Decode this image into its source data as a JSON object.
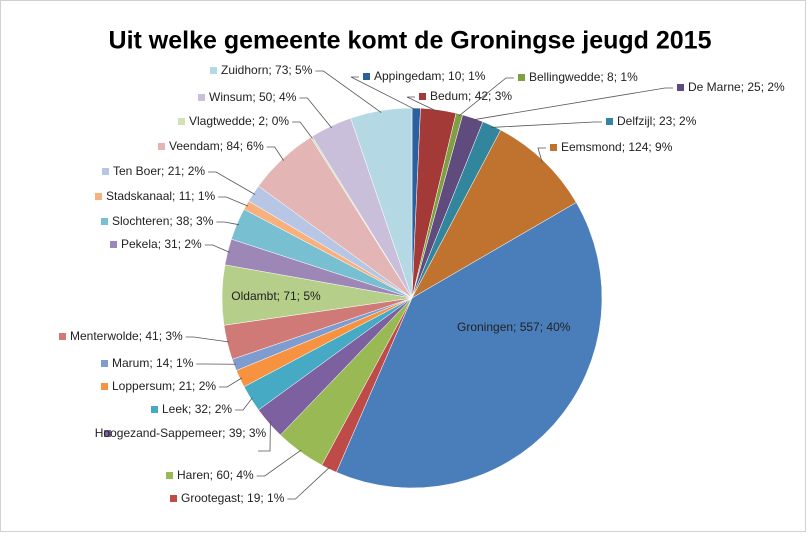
{
  "chart_data": {
    "type": "pie",
    "title": "Uit welke gemeente komt de Groningse jeugd 2015",
    "values": [
      10,
      42,
      8,
      25,
      23,
      124,
      557,
      19,
      60,
      39,
      32,
      21,
      14,
      41,
      71,
      31,
      38,
      11,
      21,
      84,
      2,
      50,
      73
    ],
    "value_labels": [
      "Appingedam; 10; 1%",
      "Bedum; 42; 3%",
      "Bellingwedde; 8; 1%",
      "De Marne; 25; 2%",
      "Delfzijl; 23; 2%",
      "Eemsmond; 124; 9%",
      "Groningen; 557; 40%",
      "Grootegast; 19; 1%",
      "Haren; 60; 4%",
      "Hoogezand-Sappemeer; 39; 3%",
      "Leek; 32; 2%",
      "Loppersum; 21; 2%",
      "Marum; 14; 1%",
      "Menterwolde; 41; 3%",
      "Oldambt; 71; 5%",
      "Pekela; 31; 2%",
      "Slochteren; 38; 3%",
      "Stadskanaal; 11; 1%",
      "Ten Boer; 21; 2%",
      "Veendam; 84; 6%",
      "Vlagtwedde; 2; 0%",
      "Winsum; 50; 4%",
      "Zuidhorn; 73; 5%"
    ],
    "colors": [
      "#2c5f9e",
      "#a33a37",
      "#7f9f42",
      "#5f4b7d",
      "#31859c",
      "#c0722f",
      "#4a7ebb",
      "#be4b48",
      "#98b954",
      "#7d60a0",
      "#46aac5",
      "#f69240",
      "#7e9ccf",
      "#d07a78",
      "#b5ce8a",
      "#9c87b6",
      "#78bfd2",
      "#f9b07f",
      "#b7c6e4",
      "#e3b5b4",
      "#d2e1b7",
      "#c9bfda",
      "#b4d9e4"
    ]
  }
}
